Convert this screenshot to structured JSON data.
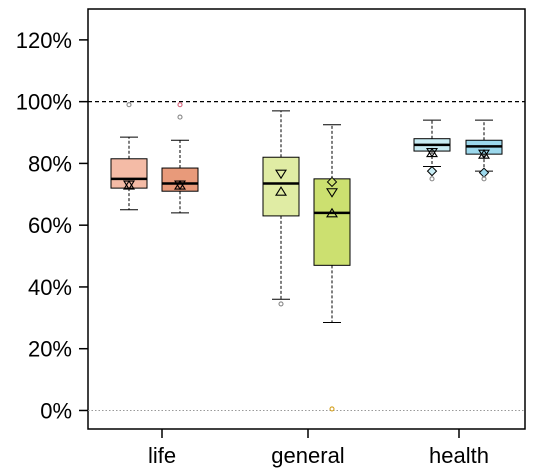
{
  "chart_data": {
    "type": "boxplot",
    "categories": [
      "life",
      "general",
      "health"
    ],
    "y_tick_labels": [
      "0%",
      "20%",
      "40%",
      "60%",
      "80%",
      "100%",
      "120%"
    ],
    "y_ticks": [
      0,
      20,
      40,
      60,
      80,
      100,
      120
    ],
    "ylim": [
      -6,
      130
    ],
    "reference_lines": [
      {
        "value": 100,
        "style": "dashed",
        "color": "#000000"
      },
      {
        "value": 0,
        "style": "dotted",
        "color": "#999999"
      }
    ],
    "grid": false,
    "boxes": [
      {
        "category": "life",
        "fill": "#f4bba6",
        "whisker_low": 65,
        "q1": 72,
        "median": 75,
        "q3": 81.5,
        "whisker_high": 88.5,
        "outliers": [
          99
        ],
        "outlier_colors": [
          "#888888"
        ],
        "tri_down": 73,
        "tri_up": 73,
        "diamond": null
      },
      {
        "category": "life",
        "fill": "#e89a7a",
        "whisker_low": 64,
        "q1": 71,
        "median": 73.5,
        "q3": 78.5,
        "whisker_high": 87.5,
        "outliers": [
          95,
          99
        ],
        "outlier_colors": [
          "#888888",
          "#d4607a"
        ],
        "tri_down": 73,
        "tri_up": 73,
        "diamond": null
      },
      {
        "category": "general",
        "fill": "#e0eca4",
        "whisker_low": 36,
        "q1": 63,
        "median": 73.5,
        "q3": 82,
        "whisker_high": 97,
        "outliers": [
          34.5
        ],
        "outlier_colors": [
          "#888888"
        ],
        "tri_down": 76.5,
        "tri_up": 71,
        "diamond": null
      },
      {
        "category": "general",
        "fill": "#cce070",
        "whisker_low": 28.5,
        "q1": 47,
        "median": 64,
        "q3": 75,
        "whisker_high": 92.5,
        "outliers": [
          0.5
        ],
        "outlier_colors": [
          "#d4a020"
        ],
        "tri_down": 70.5,
        "tri_up": 64,
        "diamond": 74
      },
      {
        "category": "health",
        "fill": "#c8ecf4",
        "whisker_low": 79,
        "q1": 84,
        "median": 86,
        "q3": 88,
        "whisker_high": 94,
        "outliers": [
          75
        ],
        "outlier_colors": [
          "#888888"
        ],
        "tri_down": 83.5,
        "tri_up": 83.5,
        "diamond": 77.5
      },
      {
        "category": "health",
        "fill": "#9cd8ec",
        "whisker_low": 77.5,
        "q1": 83,
        "median": 85.5,
        "q3": 87.5,
        "whisker_high": 94,
        "outliers": [
          75
        ],
        "outlier_colors": [
          "#888888"
        ],
        "tri_down": 83,
        "tri_up": 83,
        "diamond": 77
      }
    ]
  }
}
